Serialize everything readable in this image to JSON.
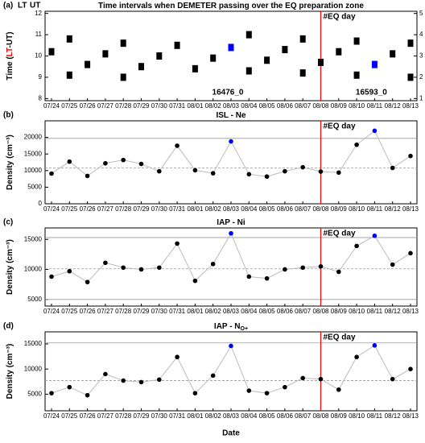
{
  "chart_data": [
    {
      "type": "marker",
      "label": "(a)",
      "title": "Time intervals when DEMETER passing over the EQ preparation zone",
      "corner_labels": [
        "LT",
        "UT"
      ],
      "ylabel_parts": [
        "Time (",
        "LT",
        "-UT)"
      ],
      "categories": [
        "07/24",
        "07/25",
        "07/26",
        "07/27",
        "07/28",
        "07/29",
        "07/30",
        "07/31",
        "08/01",
        "08/02",
        "08/03",
        "08/04",
        "08/05",
        "08/06",
        "08/07",
        "08/08",
        "08/09",
        "08/10",
        "08/11",
        "08/12",
        "08/13"
      ],
      "series": [
        {
          "color": "#000000",
          "values": [
            10.2,
            10.8,
            9.6,
            10.1,
            10.6,
            9.5,
            10.0,
            10.5,
            9.4,
            9.9,
            10.4,
            11.0,
            9.8,
            10.3,
            10.8,
            9.7,
            10.2,
            10.7,
            9.6,
            10.1,
            10.6
          ]
        },
        {
          "color": "#000000",
          "values": [
            null,
            9.1,
            null,
            null,
            9.0,
            null,
            null,
            null,
            null,
            null,
            null,
            9.3,
            null,
            null,
            9.2,
            null,
            null,
            9.1,
            null,
            null,
            9.0
          ]
        }
      ],
      "highlight": {
        "color": "#0000ff",
        "indices": [
          10,
          18
        ]
      },
      "annotations": [
        "16476_0",
        "16593_0"
      ],
      "event": {
        "label": "#EQ day",
        "index": 15,
        "color": "#ff0000"
      },
      "ylim": [
        7.9,
        12.1
      ],
      "yticks": [
        8,
        9,
        10,
        11,
        12
      ],
      "y_color": "#ff0000",
      "y2lim": [
        0.9,
        5.1
      ],
      "y2ticks": [
        1,
        2,
        3,
        4,
        5
      ]
    },
    {
      "type": "line",
      "label": "(b)",
      "title": "ISL - Ne",
      "ylabel": "Density (cm⁻³)",
      "categories": [
        "07/24",
        "07/25",
        "07/26",
        "07/27",
        "07/28",
        "07/29",
        "07/30",
        "07/31",
        "08/01",
        "08/02",
        "08/03",
        "08/04",
        "08/05",
        "08/06",
        "08/07",
        "08/08",
        "08/09",
        "08/10",
        "08/11",
        "08/12",
        "08/13"
      ],
      "values": [
        9100,
        12700,
        8400,
        12200,
        13200,
        12000,
        9800,
        17500,
        10100,
        9200,
        18800,
        8900,
        8200,
        9800,
        11000,
        9700,
        9400,
        17800,
        22000,
        10800,
        14400
      ],
      "line_color": "#bbbbbb",
      "color": "#000000",
      "highlight": {
        "color": "#0000ff",
        "indices": [
          10,
          18
        ]
      },
      "event": {
        "label": "#EQ day",
        "index": 15,
        "color": "#ff0000"
      },
      "reference_lines": [
        {
          "value": 10800,
          "style": "dashed"
        },
        {
          "value": 19700,
          "style": "solid"
        }
      ],
      "ylim": [
        0,
        25000
      ],
      "yticks": [
        0,
        5000,
        10000,
        15000,
        20000
      ]
    },
    {
      "type": "line",
      "label": "(c)",
      "title": "IAP - Ni",
      "ylabel": "Density (cm⁻³)",
      "categories": [
        "07/24",
        "07/25",
        "07/26",
        "07/27",
        "07/28",
        "07/29",
        "07/30",
        "07/31",
        "08/01",
        "08/02",
        "08/03",
        "08/04",
        "08/05",
        "08/06",
        "08/07",
        "08/08",
        "08/09",
        "08/10",
        "08/11",
        "08/12",
        "08/13"
      ],
      "values": [
        8800,
        9700,
        7900,
        11100,
        10300,
        10000,
        10300,
        14300,
        8100,
        10900,
        16000,
        8800,
        8500,
        10000,
        10300,
        10500,
        9600,
        13900,
        15600,
        10800,
        12700
      ],
      "line_color": "#bbbbbb",
      "color": "#000000",
      "highlight": {
        "color": "#0000ff",
        "indices": [
          10,
          18
        ]
      },
      "event": {
        "label": "#EQ day",
        "index": 15,
        "color": "#ff0000"
      },
      "reference_lines": [
        {
          "value": 10100,
          "style": "dashed"
        },
        {
          "value": 15300,
          "style": "solid"
        },
        {
          "value": 5000,
          "style": "solid"
        }
      ],
      "ylim": [
        3900,
        16900
      ],
      "yticks": [
        5000,
        10000,
        15000
      ]
    },
    {
      "type": "line",
      "label": "(d)",
      "title": "IAP - N",
      "title_sub": "O+",
      "ylabel": "Density (cm⁻³)",
      "categories": [
        "07/24",
        "07/25",
        "07/26",
        "07/27",
        "07/28",
        "07/29",
        "07/30",
        "07/31",
        "08/01",
        "08/02",
        "08/03",
        "08/04",
        "08/05",
        "08/06",
        "08/07",
        "08/08",
        "08/09",
        "08/10",
        "08/11",
        "08/12",
        "08/13"
      ],
      "values": [
        5200,
        6400,
        4800,
        9000,
        7700,
        7400,
        7900,
        12400,
        5200,
        8700,
        14600,
        5700,
        5200,
        6400,
        8200,
        8000,
        5900,
        12400,
        14700,
        8000,
        10000
      ],
      "line_color": "#bbbbbb",
      "color": "#000000",
      "highlight": {
        "color": "#0000ff",
        "indices": [
          10,
          18
        ]
      },
      "event": {
        "label": "#EQ day",
        "index": 15,
        "color": "#ff0000"
      },
      "reference_lines": [
        {
          "value": 7700,
          "style": "dashed"
        },
        {
          "value": 15200,
          "style": "solid"
        }
      ],
      "ylim": [
        1700,
        17400
      ],
      "yticks": [
        5000,
        10000,
        15000
      ],
      "xlabel": "Date"
    }
  ]
}
